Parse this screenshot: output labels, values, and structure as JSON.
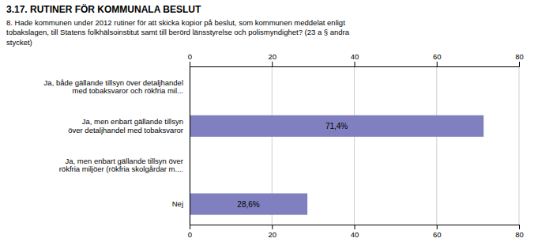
{
  "chart_data": {
    "type": "bar",
    "orientation": "horizontal",
    "title": "3.17. RUTINER FÖR KOMMUNALA BESLUT",
    "subtitle": "8. Hade kommunen under 2012 rutiner för att skicka kopior på beslut, som kommunen meddelat enligt\ntobakslagen, till Statens folkhälsoinstitut samt till berörd länsstyrelse och polismyndighet? (23 a § andra\nstycket)",
    "categories": [
      "Ja, både gällande tillsyn över detaljhandel\nmed tobaksvaror och rökfria mil...",
      "Ja, men enbart gällande tillsyn\növer detaljhandel med tobaksvaror",
      "Ja, men enbart gällande tillsyn över\nrökfria miljöer (rökfria skolgårdar m....",
      "Nej"
    ],
    "values": [
      0.0,
      71.4,
      0.0,
      28.6
    ],
    "value_labels": [
      null,
      "71,4%",
      null,
      "28,6%"
    ],
    "data_labels": true,
    "color": "#8080c0",
    "xlim": [
      0,
      80
    ],
    "xticks": [
      0,
      20,
      40,
      60,
      80
    ],
    "grid": true
  }
}
